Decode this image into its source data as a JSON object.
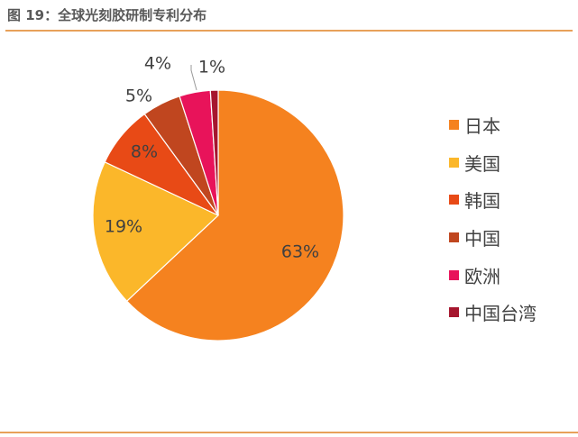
{
  "title": "图 19：全球光刻胶研制专利分布",
  "colors": {
    "rule": "#E8A15A"
  },
  "chart_data": {
    "type": "pie",
    "slices": [
      {
        "label": "日本",
        "value": 63,
        "display": "63%",
        "color": "#F5821F"
      },
      {
        "label": "美国",
        "value": 19,
        "display": "19%",
        "color": "#FBB72A"
      },
      {
        "label": "韩国",
        "value": 8,
        "display": "8%",
        "color": "#E84A16"
      },
      {
        "label": "中国",
        "value": 5,
        "display": "5%",
        "color": "#C0461F"
      },
      {
        "label": "欧洲",
        "value": 4,
        "display": "4%",
        "color": "#E8135A"
      },
      {
        "label": "中国台湾",
        "value": 1,
        "display": "1%",
        "color": "#A6162E"
      }
    ],
    "legend_position": "right"
  }
}
